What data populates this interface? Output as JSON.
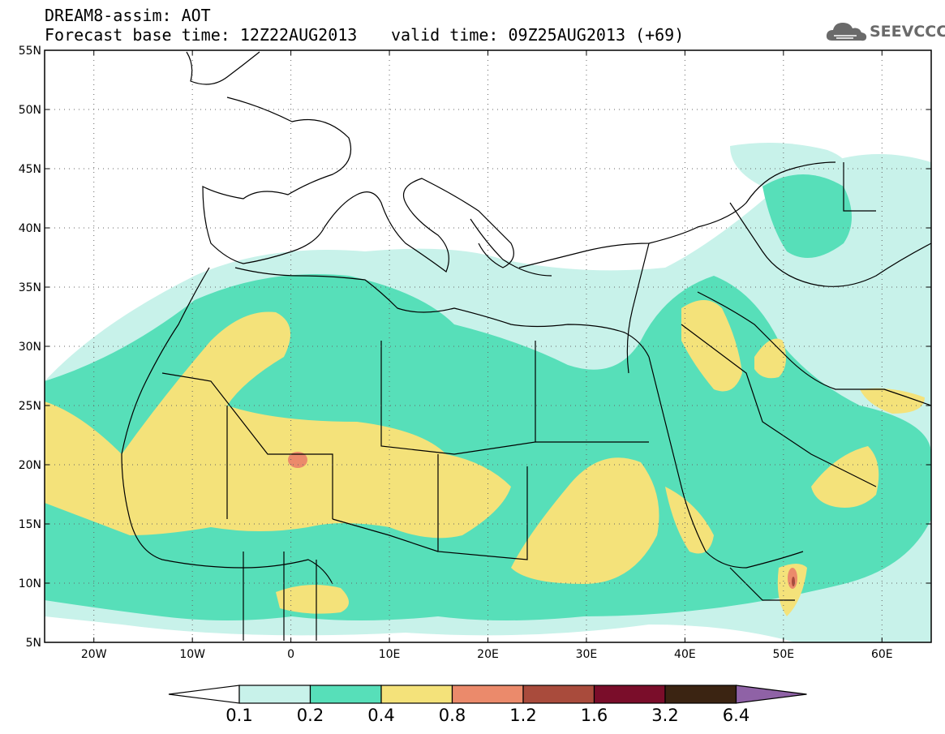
{
  "header": {
    "line1": "DREAM8-assim: AOT",
    "base_time": "Forecast base time: 12Z22AUG2013",
    "valid_time": "valid time: 09Z25AUG2013 (+69)"
  },
  "logo": {
    "text": "SEEVCCC",
    "icon": "cloud-icon"
  },
  "map": {
    "lat_labels": [
      "55N",
      "50N",
      "45N",
      "40N",
      "35N",
      "30N",
      "25N",
      "20N",
      "15N",
      "10N",
      "5N"
    ],
    "lon_labels": [
      "20W",
      "10W",
      "0",
      "10E",
      "20E",
      "30E",
      "40E",
      "50E",
      "60E"
    ]
  },
  "colorbar": {
    "colors": [
      "#ffffff",
      "#c8f2ea",
      "#57dfb9",
      "#f4e27a",
      "#eb8a6b",
      "#a94b3c",
      "#7a0d2a",
      "#3b2412",
      "#8f62a6"
    ],
    "labels": [
      "0.1",
      "0.2",
      "0.4",
      "0.8",
      "1.2",
      "1.6",
      "3.2",
      "6.4"
    ]
  }
}
